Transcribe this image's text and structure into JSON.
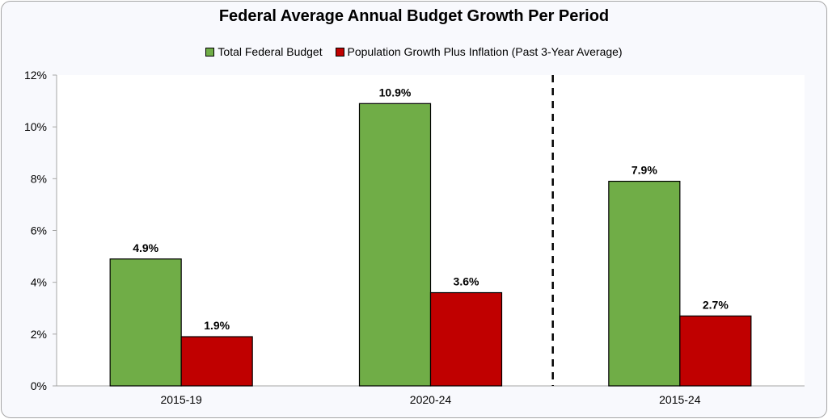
{
  "chart_data": {
    "type": "bar",
    "title": "Federal Average Annual Budget Growth Per Period",
    "categories": [
      "2015-19",
      "2020-24",
      "2015-24"
    ],
    "series": [
      {
        "name": "Total Federal Budget",
        "color": "#70ad47",
        "values": [
          4.9,
          10.9,
          7.9
        ],
        "labels": [
          "4.9%",
          "10.9%",
          "7.9%"
        ]
      },
      {
        "name": "Population Growth Plus Inflation (Past 3-Year Average)",
        "color": "#c00000",
        "values": [
          1.9,
          3.6,
          2.7
        ],
        "labels": [
          "1.9%",
          "3.6%",
          "2.7%"
        ]
      }
    ],
    "xlabel": "",
    "ylabel": "",
    "ylim": [
      0,
      12
    ],
    "yticks": [
      0,
      2,
      4,
      6,
      8,
      10,
      12
    ],
    "ytick_labels": [
      "0%",
      "2%",
      "4%",
      "6%",
      "8%",
      "10%",
      "12%"
    ],
    "legend_position": "top",
    "grid": false,
    "annotations": [
      "dashed vertical separator between 2020-24 and 2015-24"
    ]
  }
}
